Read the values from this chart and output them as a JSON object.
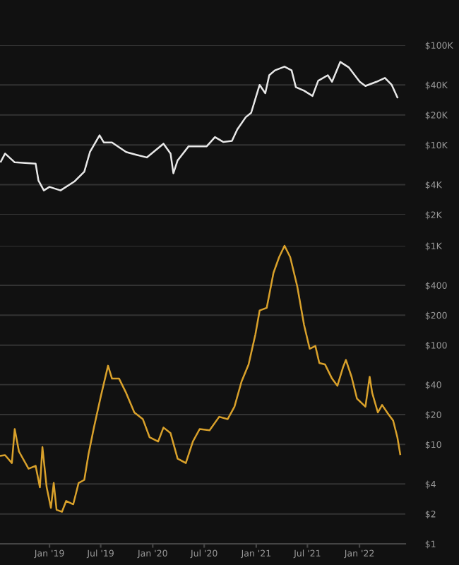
{
  "chart_data": [
    {
      "type": "line",
      "log": "y",
      "grid": "y",
      "tick_labels": "y",
      "xlim": [
        "2018-07-10",
        "2022-06-12"
      ],
      "ylim": [
        2000,
        100000
      ],
      "yticks": [
        {
          "value": 2000,
          "label": "$2K"
        },
        {
          "value": 4000,
          "label": "$4K"
        },
        {
          "value": 10000,
          "label": "$10K"
        },
        {
          "value": 20000,
          "label": "$20K"
        },
        {
          "value": 40000,
          "label": "$40K"
        },
        {
          "value": 100000,
          "label": "$100K"
        }
      ],
      "series": [
        {
          "color": "#e8e8e8",
          "x": [
            "2018-07-13",
            "2018-07-28",
            "2018-08-31",
            "2018-11-13",
            "2018-11-23",
            "2018-12-12",
            "2019-01-01",
            "2019-02-09",
            "2019-03-30",
            "2019-05-04",
            "2019-05-24",
            "2019-06-27",
            "2019-07-12",
            "2019-08-10",
            "2019-09-29",
            "2019-11-02",
            "2019-12-11",
            "2020-02-08",
            "2020-03-04",
            "2020-03-14",
            "2020-03-29",
            "2020-05-07",
            "2020-07-10",
            "2020-08-08",
            "2020-09-07",
            "2020-10-07",
            "2020-10-26",
            "2020-11-25",
            "2020-12-14",
            "2020-12-29",
            "2021-01-13",
            "2021-02-02",
            "2021-02-16",
            "2021-03-08",
            "2021-04-11",
            "2021-05-06",
            "2021-05-21",
            "2021-06-19",
            "2021-07-19",
            "2021-08-08",
            "2021-09-11",
            "2021-09-26",
            "2021-10-25",
            "2021-11-24",
            "2022-01-02",
            "2022-01-22",
            "2022-03-02",
            "2022-04-01",
            "2022-04-25",
            "2022-05-15"
          ],
          "values": [
            6800,
            8200,
            6700,
            6500,
            4400,
            3500,
            3800,
            3500,
            4300,
            5400,
            8500,
            12500,
            10600,
            10600,
            8500,
            8000,
            7500,
            10300,
            8200,
            5200,
            7000,
            9700,
            9700,
            12000,
            10700,
            11000,
            14300,
            19000,
            21000,
            29000,
            40000,
            33000,
            50000,
            56000,
            61000,
            56000,
            38000,
            35000,
            31000,
            44000,
            50000,
            43000,
            68000,
            60000,
            43000,
            39000,
            43000,
            47000,
            40000,
            30000
          ]
        }
      ]
    },
    {
      "type": "line",
      "log": "y",
      "grid": "y",
      "xlim": [
        "2018-07-10",
        "2022-06-12"
      ],
      "ylim": [
        1,
        1000
      ],
      "xticks": [
        {
          "value": "2019-01-01",
          "label": "Jan '19"
        },
        {
          "value": "2019-07-01",
          "label": "Jul '19"
        },
        {
          "value": "2020-01-01",
          "label": "Jan '20"
        },
        {
          "value": "2020-07-01",
          "label": "Jul '20"
        },
        {
          "value": "2021-01-01",
          "label": "Jan '21"
        },
        {
          "value": "2021-07-01",
          "label": "Jul '21"
        },
        {
          "value": "2022-01-01",
          "label": "Jan '22"
        }
      ],
      "yticks": [
        {
          "value": 1,
          "label": "$1"
        },
        {
          "value": 2,
          "label": "$2"
        },
        {
          "value": 4,
          "label": "$4"
        },
        {
          "value": 10,
          "label": "$10"
        },
        {
          "value": 20,
          "label": "$20"
        },
        {
          "value": 40,
          "label": "$40"
        },
        {
          "value": 100,
          "label": "$100"
        },
        {
          "value": 200,
          "label": "$200"
        },
        {
          "value": 400,
          "label": "$400"
        },
        {
          "value": 1000,
          "label": "$1K"
        }
      ],
      "series": [
        {
          "color": "#d9a12b",
          "x": [
            "2018-07-13",
            "2018-07-28",
            "2018-08-21",
            "2018-08-31",
            "2018-09-15",
            "2018-10-19",
            "2018-11-13",
            "2018-11-28",
            "2018-12-07",
            "2018-12-22",
            "2019-01-06",
            "2019-01-16",
            "2019-01-26",
            "2019-02-14",
            "2019-03-01",
            "2019-03-26",
            "2019-04-14",
            "2019-05-04",
            "2019-05-19",
            "2019-06-07",
            "2019-07-02",
            "2019-07-27",
            "2019-08-10",
            "2019-09-04",
            "2019-09-29",
            "2019-10-28",
            "2019-11-27",
            "2019-12-21",
            "2020-01-20",
            "2020-02-08",
            "2020-03-04",
            "2020-03-29",
            "2020-04-27",
            "2020-05-22",
            "2020-06-15",
            "2020-07-20",
            "2020-08-23",
            "2020-09-22",
            "2020-10-16",
            "2020-11-10",
            "2020-12-05",
            "2020-12-29",
            "2021-01-13",
            "2021-02-07",
            "2021-03-03",
            "2021-03-23",
            "2021-04-11",
            "2021-05-01",
            "2021-05-26",
            "2021-06-19",
            "2021-07-09",
            "2021-07-29",
            "2021-08-12",
            "2021-09-01",
            "2021-09-26",
            "2021-10-15",
            "2021-11-04",
            "2021-11-14",
            "2021-12-04",
            "2021-12-23",
            "2022-01-22",
            "2022-02-06",
            "2022-02-15",
            "2022-03-07",
            "2022-03-22",
            "2022-04-11",
            "2022-04-30",
            "2022-05-15",
            "2022-05-25"
          ],
          "values": [
            7.7,
            7.8,
            6.5,
            14.3,
            8.5,
            5.7,
            6.1,
            3.7,
            9.4,
            3.7,
            2.3,
            4.1,
            2.2,
            2.1,
            2.7,
            2.5,
            4.1,
            4.4,
            8,
            14.8,
            31,
            62,
            46,
            46,
            33,
            21,
            18,
            11.8,
            10.7,
            14.8,
            13,
            7.2,
            6.5,
            10.7,
            14.3,
            13.9,
            19,
            18,
            24,
            43,
            64,
            128,
            223,
            237,
            535,
            770,
            1000,
            770,
            390,
            160,
            92,
            98,
            66,
            64,
            46,
            39,
            60,
            71,
            48,
            29,
            24,
            48,
            33,
            21,
            25,
            20.6,
            17.4,
            11.8,
            8
          ]
        }
      ]
    }
  ]
}
